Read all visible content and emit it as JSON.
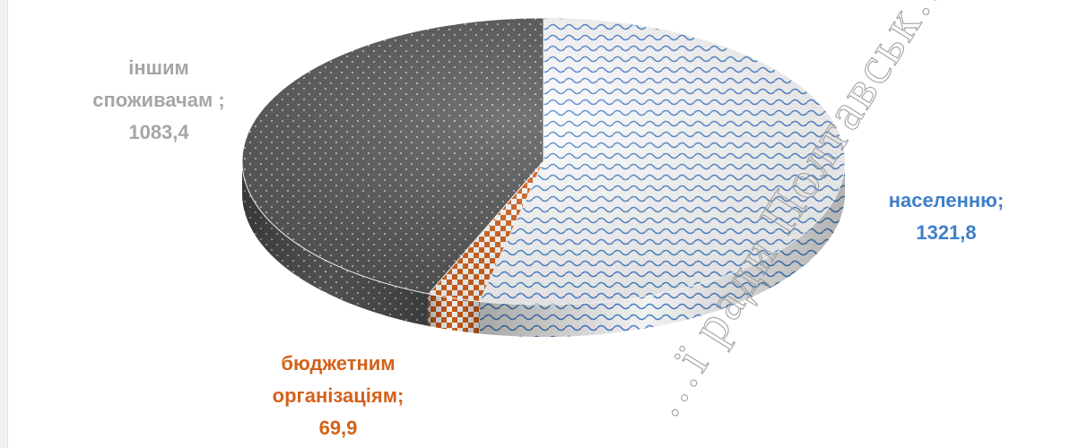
{
  "chart_data": {
    "type": "pie",
    "style": "3d",
    "title": "",
    "series": [
      {
        "values": [
          1321.8,
          69.9,
          1083.4
        ]
      }
    ],
    "slices": [
      {
        "name": "населенню",
        "value": 1321.8,
        "label_name": "населенню;",
        "label_value": "1321,8",
        "color": "#3f7fc8"
      },
      {
        "name": "бюджетним організаціям",
        "value": 69.9,
        "label_line1": "бюджетним",
        "label_line2": "організаціям;",
        "label_value": "69,9",
        "color": "#d4621a"
      },
      {
        "name": "іншим споживачам",
        "value": 1083.4,
        "label_line1": "іншим",
        "label_line2": "споживачам ;",
        "label_value": "1083,4",
        "color": "#555555"
      }
    ],
    "label_color_others": "#a6a6a6"
  },
  "watermark": {
    "text": "…ї ради Полтавськ…"
  }
}
